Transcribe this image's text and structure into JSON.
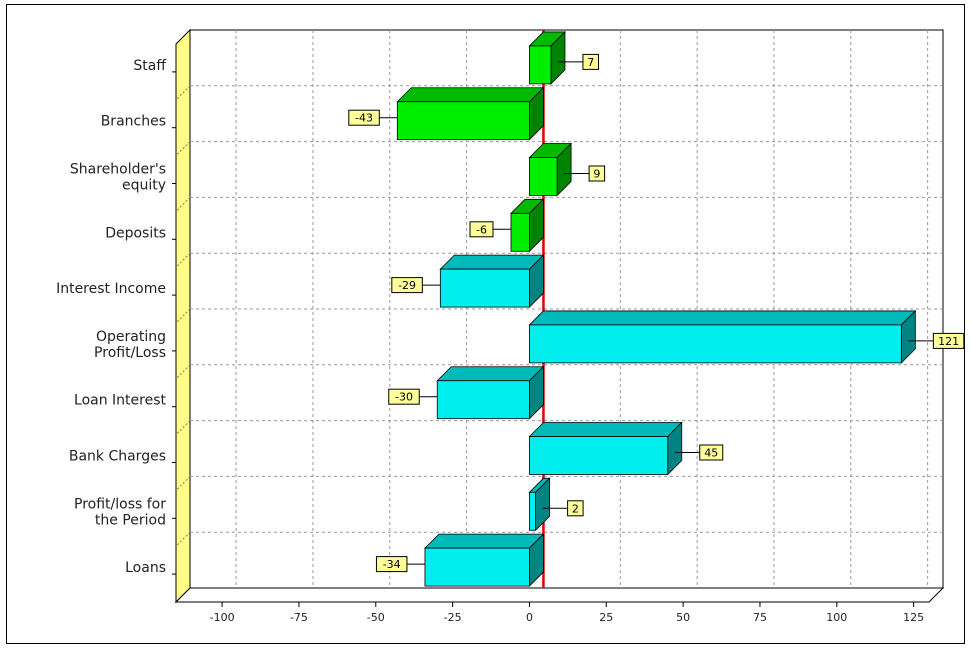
{
  "chart_data": {
    "type": "bar",
    "orientation": "horizontal",
    "style": "3d",
    "categories": [
      "Staff",
      "Branches",
      "Shareholder's equity",
      "Deposits",
      "Interest Income",
      "Operating Profit/Loss",
      "Loan Interest",
      "Bank Charges",
      "Profit/loss for the Period",
      "Loans"
    ],
    "category_lines": [
      [
        "Staff"
      ],
      [
        "Branches"
      ],
      [
        "Shareholder's",
        "equity"
      ],
      [
        "Deposits"
      ],
      [
        "Interest Income"
      ],
      [
        "Operating",
        "Profit/Loss"
      ],
      [
        "Loan Interest"
      ],
      [
        "Bank Charges"
      ],
      [
        "Profit/loss for",
        "the Period"
      ],
      [
        "Loans"
      ]
    ],
    "values": [
      7,
      -43,
      9,
      -6,
      -29,
      121,
      -30,
      45,
      2,
      -34
    ],
    "data_labels": [
      "7",
      "-43",
      "9",
      "-6",
      "-29",
      "121",
      "-30",
      "45",
      "2",
      "-34"
    ],
    "bar_colors": [
      "#00ee00",
      "#00ee00",
      "#00ee00",
      "#00ee00",
      "#00eeee",
      "#00eeee",
      "#00eeee",
      "#00eeee",
      "#00eeee",
      "#00eeee"
    ],
    "xlim": [
      -115,
      130
    ],
    "xticks": [
      -100,
      -75,
      -50,
      -25,
      0,
      25,
      50,
      75,
      100,
      125
    ],
    "xtick_labels": [
      "-100",
      "-75",
      "-50",
      "-25",
      "0",
      "25",
      "50",
      "75",
      "100",
      "125"
    ],
    "zero_line_color": "#e00000",
    "wall_color": "#ffff88",
    "label_box_color": "#ffff99",
    "grid": true,
    "title": "",
    "xlabel": "",
    "ylabel": ""
  }
}
